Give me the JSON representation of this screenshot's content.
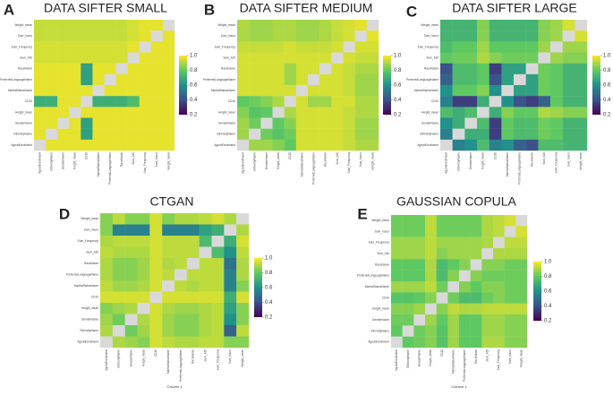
{
  "chart_data": [
    {
      "type": "heatmap",
      "label": "A",
      "title": "DATA SIFTER SMALL",
      "colormap": "viridis",
      "clim": [
        0.2,
        1.0
      ],
      "cbar_ticks": [
        0.2,
        0.4,
        0.6,
        0.8,
        {
          "value": 1.0,
          "label": "1.0"
        }
      ],
      "rows": [
        "Weight_mean",
        "Sum_hours",
        "Sum_Frequency",
        "Sum_ADI",
        "RaceName",
        "PreferredLanguageName",
        "MaritalStatusName",
        "CD10",
        "Height_mean",
        "GenderName",
        "EthnicityName",
        "AgeatEnrollment"
      ],
      "columns": [
        "AgeatEnrollment",
        "EthnicityName",
        "GenderName",
        "Height_mean",
        "CD10",
        "MaritalStatusName",
        "PreferredLanguageName",
        "RaceName",
        "Sum_ADI",
        "Sum_Frequency",
        "Sum_hours",
        "Weight_mean"
      ],
      "values": [
        [
          0.93,
          0.93,
          0.93,
          0.93,
          0.93,
          0.93,
          0.93,
          0.93,
          0.95,
          0.97,
          0.97,
          null
        ],
        [
          0.93,
          0.93,
          0.93,
          0.93,
          0.93,
          0.93,
          0.93,
          0.93,
          0.95,
          0.97,
          null,
          0.97
        ],
        [
          0.95,
          0.95,
          0.95,
          0.95,
          0.95,
          0.95,
          0.95,
          0.95,
          0.97,
          null,
          0.97,
          0.97
        ],
        [
          0.95,
          0.95,
          0.95,
          0.95,
          0.95,
          0.95,
          0.95,
          0.95,
          null,
          0.97,
          0.97,
          0.97
        ],
        [
          0.97,
          0.97,
          0.97,
          0.97,
          0.65,
          0.97,
          0.97,
          null,
          0.97,
          0.97,
          0.97,
          0.97
        ],
        [
          0.97,
          0.97,
          0.97,
          0.97,
          0.65,
          0.97,
          null,
          0.97,
          0.97,
          0.97,
          0.97,
          0.97
        ],
        [
          0.97,
          0.97,
          0.97,
          0.97,
          0.97,
          null,
          0.97,
          0.97,
          0.97,
          0.97,
          0.97,
          0.97
        ],
        [
          0.7,
          0.7,
          0.97,
          0.97,
          null,
          0.7,
          0.7,
          0.7,
          0.75,
          0.97,
          0.97,
          0.97
        ],
        [
          0.97,
          0.97,
          0.97,
          null,
          0.97,
          0.97,
          0.97,
          0.97,
          0.97,
          0.97,
          0.97,
          0.97
        ],
        [
          0.97,
          0.97,
          null,
          0.97,
          0.65,
          0.97,
          0.97,
          0.97,
          0.97,
          0.97,
          0.97,
          0.97
        ],
        [
          0.97,
          null,
          0.97,
          0.97,
          0.65,
          0.97,
          0.97,
          0.97,
          0.97,
          0.97,
          0.97,
          0.97
        ],
        [
          null,
          0.97,
          0.97,
          0.97,
          0.97,
          0.97,
          0.97,
          0.97,
          0.97,
          0.97,
          0.97,
          0.97
        ]
      ]
    },
    {
      "type": "heatmap",
      "label": "B",
      "title": "DATA SIFTER MEDIUM",
      "colormap": "viridis",
      "clim": [
        0.2,
        1.0
      ],
      "cbar_ticks": [
        0.2,
        0.4,
        0.6,
        0.8,
        {
          "value": 1.0,
          "label": "1.0"
        }
      ],
      "rows": [
        "Weight_mean",
        "Sum_hours",
        "Sum_Frequency",
        "Sum_ADI",
        "RaceName",
        "PreferredLanguageName",
        "MaritalStatusName",
        "CD10",
        "Height_mean",
        "GenderName",
        "EthnicityName",
        "AgeatEnrollment"
      ],
      "columns": [
        "AgeatEnrollment",
        "EthnicityName",
        "GenderName",
        "Height_mean",
        "CD10",
        "MaritalStatusName",
        "PreferredLanguageName",
        "RaceName",
        "Sum_ADI",
        "Sum_Frequency",
        "Sum_hours",
        "Weight_mean"
      ],
      "values": [
        [
          0.9,
          0.88,
          0.88,
          0.9,
          0.9,
          0.88,
          0.88,
          0.9,
          0.93,
          0.95,
          0.97,
          null
        ],
        [
          0.9,
          0.88,
          0.88,
          0.9,
          0.9,
          0.88,
          0.88,
          0.9,
          0.93,
          0.95,
          null,
          0.97
        ],
        [
          0.93,
          0.93,
          0.93,
          0.93,
          0.95,
          0.93,
          0.93,
          0.93,
          0.95,
          null,
          0.95,
          0.95
        ],
        [
          0.95,
          0.95,
          0.95,
          0.95,
          0.95,
          0.95,
          0.95,
          0.95,
          null,
          0.95,
          0.93,
          0.93
        ],
        [
          0.95,
          0.95,
          0.95,
          0.95,
          0.88,
          0.95,
          0.95,
          null,
          0.95,
          0.93,
          0.9,
          0.9
        ],
        [
          0.95,
          0.95,
          0.95,
          0.95,
          0.88,
          0.95,
          null,
          0.95,
          0.95,
          0.93,
          0.88,
          0.88
        ],
        [
          0.95,
          0.95,
          0.95,
          0.95,
          0.95,
          null,
          0.95,
          0.95,
          0.95,
          0.93,
          0.88,
          0.88
        ],
        [
          0.8,
          0.82,
          0.85,
          0.9,
          null,
          0.95,
          0.88,
          0.88,
          0.95,
          0.95,
          0.9,
          0.9
        ],
        [
          0.85,
          0.78,
          0.8,
          null,
          0.9,
          0.95,
          0.95,
          0.95,
          0.95,
          0.93,
          0.9,
          0.9
        ],
        [
          0.88,
          0.82,
          null,
          0.8,
          0.85,
          0.95,
          0.95,
          0.95,
          0.95,
          0.93,
          0.88,
          0.88
        ],
        [
          0.88,
          null,
          0.82,
          0.78,
          0.82,
          0.95,
          0.95,
          0.95,
          0.95,
          0.93,
          0.88,
          0.88
        ],
        [
          null,
          0.88,
          0.88,
          0.85,
          0.8,
          0.95,
          0.95,
          0.95,
          0.95,
          0.93,
          0.9,
          0.9
        ]
      ]
    },
    {
      "type": "heatmap",
      "label": "C",
      "title": "DATA SIFTER LARGE",
      "colormap": "viridis",
      "clim": [
        0.2,
        1.0
      ],
      "cbar_ticks": [
        0.2,
        0.4,
        0.6,
        0.8,
        {
          "value": 1.0,
          "label": "1.0"
        }
      ],
      "rows": [
        "Weight_mean",
        "Sum_hours",
        "Sum_Frequency",
        "Sum_ADI",
        "RaceName",
        "PreferredLanguageName",
        "MaritalStatusName",
        "CD10",
        "Height_mean",
        "GenderName",
        "EthnicityName",
        "AgeatEnrollment"
      ],
      "columns": [
        "AgeatEnrollment",
        "EthnicityName",
        "GenderName",
        "Height_mean",
        "CD10",
        "MaritalStatusName",
        "PreferredLanguageName",
        "RaceName",
        "Sum_ADI",
        "Sum_Frequency",
        "Sum_hours",
        "Weight_mean"
      ],
      "values": [
        [
          0.72,
          0.72,
          0.72,
          0.85,
          0.72,
          0.72,
          0.72,
          0.72,
          0.85,
          0.88,
          0.95,
          null
        ],
        [
          0.72,
          0.72,
          0.72,
          0.85,
          0.72,
          0.72,
          0.72,
          0.72,
          0.85,
          0.88,
          null,
          0.95
        ],
        [
          0.75,
          0.8,
          0.8,
          0.88,
          0.8,
          0.8,
          0.8,
          0.8,
          0.88,
          null,
          0.88,
          0.88
        ],
        [
          0.8,
          0.82,
          0.82,
          0.9,
          0.85,
          0.82,
          0.82,
          0.82,
          null,
          0.88,
          0.85,
          0.85
        ],
        [
          0.4,
          0.75,
          0.75,
          0.8,
          0.35,
          0.65,
          0.65,
          null,
          0.82,
          0.8,
          0.72,
          0.72
        ],
        [
          0.45,
          0.75,
          0.75,
          0.8,
          0.4,
          0.65,
          null,
          0.65,
          0.82,
          0.8,
          0.72,
          0.72
        ],
        [
          0.6,
          0.8,
          0.8,
          0.85,
          0.6,
          null,
          0.65,
          0.65,
          0.82,
          0.8,
          0.72,
          0.72
        ],
        [
          0.55,
          0.35,
          0.35,
          0.7,
          null,
          0.6,
          0.4,
          0.35,
          0.45,
          0.8,
          0.72,
          0.72
        ],
        [
          0.75,
          0.7,
          0.75,
          null,
          0.7,
          0.85,
          0.8,
          0.8,
          0.9,
          0.88,
          0.85,
          0.85
        ],
        [
          0.6,
          0.7,
          null,
          0.75,
          0.35,
          0.8,
          0.75,
          0.75,
          0.82,
          0.8,
          0.72,
          0.72
        ],
        [
          0.55,
          null,
          0.7,
          0.7,
          0.35,
          0.8,
          0.75,
          0.75,
          0.82,
          0.8,
          0.72,
          0.72
        ],
        [
          null,
          0.55,
          0.6,
          0.75,
          0.55,
          0.6,
          0.45,
          0.4,
          0.75,
          0.75,
          0.72,
          0.72
        ]
      ]
    },
    {
      "type": "heatmap",
      "label": "D",
      "title": "CTGAN",
      "x_label": "Column 1",
      "colormap": "viridis",
      "clim": [
        0.2,
        1.0
      ],
      "cbar_ticks": [
        0.2,
        0.4,
        0.6,
        0.8,
        {
          "value": 1.0,
          "label": "1.0"
        }
      ],
      "rows": [
        "Weight_mean",
        "Sum_hours",
        "Sum_Frequency",
        "Sum_ADI",
        "RaceName",
        "PreferredLanguageName",
        "MaritalStatusName",
        "CD10",
        "Height_mean",
        "GenderName",
        "EthnicityName",
        "AgeatEnrollment"
      ],
      "columns": [
        "AgeatEnrollment",
        "EthnicityName",
        "GenderName",
        "Height_mean",
        "CD10",
        "MaritalStatusName",
        "PreferredLanguageName",
        "RaceName",
        "Sum_ADI",
        "Sum_Frequency",
        "Sum_hours",
        "Weight_mean"
      ],
      "values": [
        [
          0.85,
          0.92,
          0.85,
          0.85,
          0.95,
          0.85,
          0.9,
          0.9,
          0.92,
          0.95,
          0.9,
          null
        ],
        [
          0.85,
          0.55,
          0.55,
          0.55,
          0.95,
          0.55,
          0.55,
          0.55,
          0.65,
          0.7,
          null,
          0.9
        ],
        [
          0.9,
          0.92,
          0.92,
          0.92,
          0.95,
          0.92,
          0.92,
          0.92,
          0.75,
          null,
          0.7,
          0.95
        ],
        [
          0.92,
          0.9,
          0.9,
          0.9,
          0.95,
          0.92,
          0.92,
          0.92,
          null,
          0.75,
          0.6,
          0.92
        ],
        [
          0.9,
          0.85,
          0.85,
          0.88,
          0.95,
          0.9,
          0.92,
          null,
          0.92,
          0.92,
          0.5,
          0.9
        ],
        [
          0.9,
          0.85,
          0.85,
          0.88,
          0.95,
          0.92,
          null,
          0.92,
          0.92,
          0.92,
          0.55,
          0.9
        ],
        [
          0.92,
          0.88,
          0.88,
          0.9,
          0.95,
          null,
          0.92,
          0.9,
          0.92,
          0.92,
          0.55,
          0.85
        ],
        [
          0.95,
          0.95,
          0.95,
          0.95,
          null,
          0.95,
          0.95,
          0.95,
          0.95,
          0.95,
          0.7,
          0.95
        ],
        [
          0.85,
          0.88,
          0.9,
          null,
          0.95,
          0.9,
          0.88,
          0.88,
          0.9,
          0.92,
          0.65,
          0.85
        ],
        [
          0.88,
          0.82,
          null,
          0.9,
          0.95,
          0.88,
          0.85,
          0.85,
          0.9,
          0.92,
          0.6,
          0.85
        ],
        [
          0.9,
          null,
          0.82,
          0.88,
          0.95,
          0.88,
          0.85,
          0.85,
          0.9,
          0.92,
          0.45,
          0.92
        ],
        [
          null,
          0.9,
          0.88,
          0.85,
          0.95,
          0.92,
          0.9,
          0.9,
          0.92,
          0.92,
          0.85,
          0.85
        ]
      ]
    },
    {
      "type": "heatmap",
      "label": "E",
      "title": "GAUSSIAN COPULA",
      "x_label": "Column 1",
      "colormap": "viridis",
      "clim": [
        0.2,
        1.0
      ],
      "cbar_ticks": [
        0.2,
        0.4,
        0.6,
        0.8,
        {
          "value": 1.0,
          "label": "1.0"
        }
      ],
      "rows": [
        "Weight_mean",
        "Sum_hours",
        "Sum_Frequency",
        "Sum_ADI",
        "RaceName",
        "PreferredLanguageName",
        "MaritalStatusName",
        "CD10",
        "Height_mean",
        "GenderName",
        "EthnicityName",
        "AgeatEnrollment"
      ],
      "columns": [
        "AgeatEnrollment",
        "EthnicityName",
        "GenderName",
        "Height_mean",
        "CD10",
        "MaritalStatusName",
        "PreferredLanguageName",
        "RaceName",
        "Sum_ADI",
        "Sum_Frequency",
        "Sum_hours",
        "Weight_mean"
      ],
      "values": [
        [
          0.82,
          0.82,
          0.82,
          0.92,
          0.82,
          0.82,
          0.82,
          0.82,
          0.9,
          0.92,
          0.95,
          null
        ],
        [
          0.82,
          0.82,
          0.82,
          0.92,
          0.82,
          0.82,
          0.82,
          0.82,
          0.9,
          0.92,
          null,
          0.95
        ],
        [
          0.88,
          0.88,
          0.88,
          0.92,
          0.88,
          0.88,
          0.88,
          0.88,
          0.9,
          null,
          0.92,
          0.92
        ],
        [
          0.88,
          0.88,
          0.88,
          0.92,
          0.85,
          0.88,
          0.88,
          0.88,
          null,
          0.9,
          0.9,
          0.9
        ],
        [
          0.8,
          0.8,
          0.8,
          0.9,
          0.75,
          0.8,
          0.85,
          null,
          0.85,
          0.85,
          0.82,
          0.82
        ],
        [
          0.8,
          0.8,
          0.8,
          0.9,
          0.75,
          0.85,
          null,
          0.85,
          0.82,
          0.82,
          0.82,
          0.82
        ],
        [
          0.88,
          0.88,
          0.88,
          0.92,
          0.82,
          null,
          0.85,
          0.8,
          0.85,
          0.85,
          0.82,
          0.82
        ],
        [
          0.78,
          0.78,
          0.8,
          0.85,
          null,
          0.82,
          0.75,
          0.75,
          0.82,
          0.85,
          0.82,
          0.82
        ],
        [
          0.85,
          0.85,
          0.88,
          null,
          0.85,
          0.92,
          0.9,
          0.9,
          0.92,
          0.92,
          0.92,
          0.92
        ],
        [
          0.82,
          0.82,
          null,
          0.88,
          0.8,
          0.88,
          0.8,
          0.8,
          0.88,
          0.88,
          0.85,
          0.85
        ],
        [
          0.8,
          null,
          0.82,
          0.85,
          0.78,
          0.88,
          0.8,
          0.8,
          0.88,
          0.88,
          0.85,
          0.85
        ],
        [
          null,
          0.8,
          0.82,
          0.85,
          0.78,
          0.88,
          0.8,
          0.8,
          0.9,
          0.9,
          0.85,
          0.85
        ]
      ]
    }
  ]
}
